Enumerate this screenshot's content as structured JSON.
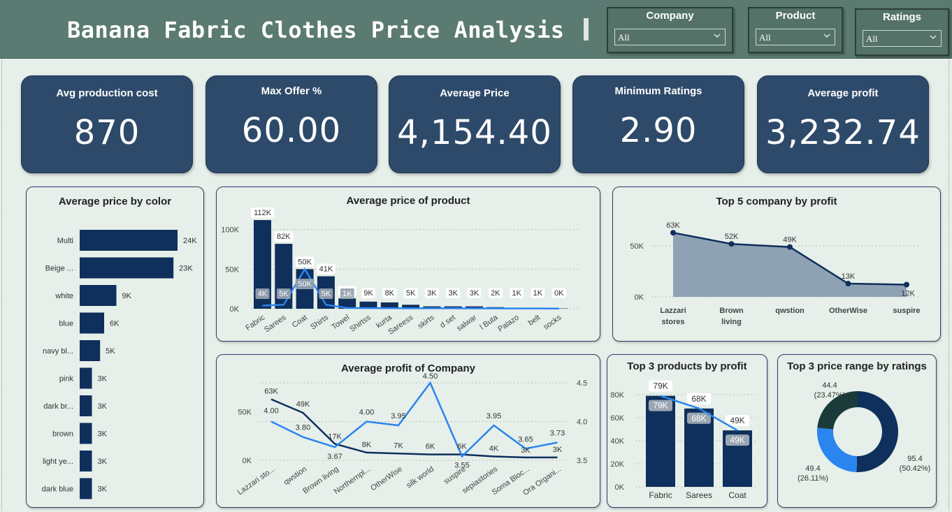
{
  "header": {
    "title": "Banana Fabric Clothes Price Analysis",
    "slicers": [
      {
        "label": "Company",
        "value": "All"
      },
      {
        "label": "Product",
        "value": "All"
      },
      {
        "label": "Ratings",
        "value": "All"
      }
    ]
  },
  "kpis": [
    {
      "label": "Avg production cost",
      "value": "870"
    },
    {
      "label": "Max Offer %",
      "value": "60.00"
    },
    {
      "label": "Average Price",
      "value": "4,154.40"
    },
    {
      "label": "Minimum Ratings",
      "value": "2.90"
    },
    {
      "label": "Average profit",
      "value": "3,232.74"
    }
  ],
  "colors": {
    "bar": "#0f2f5c",
    "line_light": "#2a85ef",
    "line_dark": "#0f2f5c",
    "area": "#8ea2b4",
    "donut_dark": "#1a3b3a"
  },
  "chart_data": [
    {
      "type": "bar",
      "title": "Average price by color",
      "orientation": "horizontal",
      "categories": [
        "Multi",
        "Beige ...",
        "white",
        "blue",
        "navy bl...",
        "pink",
        "dark br...",
        "brown",
        "light ye...",
        "dark blue"
      ],
      "values": [
        24000,
        23000,
        9000,
        6000,
        5000,
        3000,
        3000,
        3000,
        3000,
        3000
      ],
      "value_labels": [
        "24K",
        "23K",
        "9K",
        "6K",
        "5K",
        "3K",
        "3K",
        "3K",
        "3K",
        "3K"
      ]
    },
    {
      "type": "bar",
      "title": "Average price of product",
      "categories": [
        "Fabric",
        "Sarees",
        "Coat",
        "Shirts",
        "Towel",
        "Shirtss",
        "kurta",
        "Sareess",
        "skirts",
        "d set",
        "salwar",
        "l Buta",
        "Palazo",
        "belt",
        "socks"
      ],
      "series": [
        {
          "type": "bar",
          "values": [
            112000,
            82000,
            50000,
            41000,
            13000,
            9000,
            8000,
            5000,
            3000,
            3000,
            3000,
            2000,
            1000,
            1000,
            400
          ],
          "labels": [
            "112K",
            "82K",
            "50K",
            "41K",
            "13K",
            "9K",
            "8K",
            "5K",
            "3K",
            "3K",
            "3K",
            "2K",
            "1K",
            "1K",
            "0K"
          ]
        },
        {
          "type": "line",
          "values": [
            4000,
            5000,
            50000,
            5000,
            1000,
            800,
            700,
            600,
            500,
            500,
            400,
            400,
            300,
            300,
            200
          ],
          "labels": [
            "4K",
            "5K",
            "50K",
            "5K",
            "1K"
          ]
        }
      ],
      "y_ticks": [
        "0K",
        "50K",
        "100K"
      ],
      "ylim": [
        0,
        120000
      ],
      "grid": true
    },
    {
      "type": "area",
      "title": "Top 5 company by profit",
      "categories": [
        "Lazzari stores",
        "Brown living",
        "qwstion",
        "OtherWise",
        "suspire"
      ],
      "values": [
        63000,
        52000,
        49000,
        13000,
        12000
      ],
      "value_labels": [
        "63K",
        "52K",
        "49K",
        "13K",
        "12K"
      ],
      "y_ticks": [
        "0K",
        "50K"
      ],
      "ylim": [
        0,
        70000
      ]
    },
    {
      "type": "line",
      "title": "Average profit of Company",
      "categories": [
        "Lazzari sto...",
        "qwstion",
        "Brown living",
        "Northernpl...",
        "OtherWise",
        "silk world",
        "suspire",
        "sepiastories",
        "Soma Bloc...",
        "Ora Organi..."
      ],
      "series": [
        {
          "axis": "left",
          "values": [
            63000,
            49000,
            17000,
            8000,
            7000,
            6000,
            6000,
            4000,
            3000,
            3000
          ],
          "labels": [
            "63K",
            "49K",
            "17K",
            "8K",
            "7K",
            "6K",
            "6K",
            "4K",
            "3K",
            "3K"
          ]
        },
        {
          "axis": "right",
          "values": [
            4.0,
            3.8,
            3.67,
            4.0,
            3.95,
            4.5,
            3.55,
            3.95,
            3.65,
            3.73
          ],
          "labels": [
            "4.00",
            "3.80",
            "3.67",
            "4.00",
            "3.95",
            "4.50",
            "3.55",
            "3.95",
            "3.65",
            "3.73"
          ]
        }
      ],
      "y_ticks_left": [
        "0K",
        "50K"
      ],
      "y_ticks_right": [
        "3.5",
        "4.0",
        "4.5"
      ],
      "ylim_left": [
        0,
        80000
      ],
      "ylim_right": [
        3.5,
        4.5
      ]
    },
    {
      "type": "bar",
      "title": "Top 3 products by profit",
      "categories": [
        "Fabric",
        "Sarees",
        "Coat"
      ],
      "values": [
        79000,
        68000,
        49000
      ],
      "value_labels": [
        "79K",
        "68K",
        "49K"
      ],
      "y_ticks": [
        "0K",
        "20K",
        "40K",
        "60K",
        "80K"
      ],
      "ylim": [
        0,
        85000
      ]
    },
    {
      "type": "pie",
      "title": "Top 3 price range by ratings",
      "slices": [
        {
          "value": 95.4,
          "percent": "(50.42%)",
          "label": "95.4"
        },
        {
          "value": 49.4,
          "percent": "(26.11%)",
          "label": "49.4"
        },
        {
          "value": 44.4,
          "percent": "(23.47%)",
          "label": "44.4"
        }
      ]
    }
  ]
}
